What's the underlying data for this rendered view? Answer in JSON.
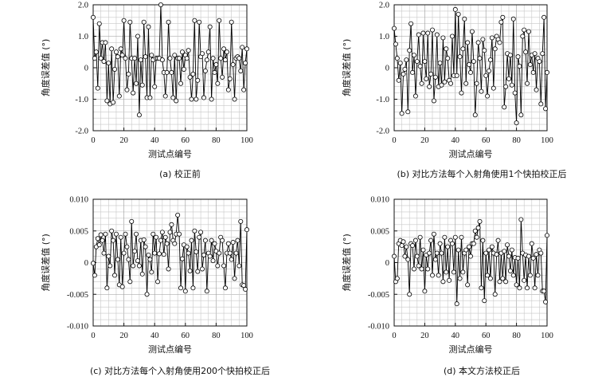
{
  "chart_data": [
    {
      "type": "line",
      "caption": "(a) 校正前",
      "xlabel": "测试点编号",
      "ylabel": "角度误差值 (°)",
      "xlim": [
        0,
        100
      ],
      "ylim": [
        -2.0,
        2.0
      ],
      "x_ticks": [
        "0",
        "20",
        "40",
        "60",
        "80",
        "100"
      ],
      "y_ticks": [
        "2.0",
        "1.0",
        "0",
        "-1.0",
        "-2.0"
      ],
      "grid": true,
      "series": [
        {
          "x": [
            0,
            1,
            2,
            3,
            4,
            5,
            6,
            7,
            8,
            9,
            10,
            11,
            12,
            13,
            14,
            15,
            16,
            17,
            18,
            19,
            20,
            21,
            22,
            23,
            24,
            25,
            26,
            27,
            28,
            29,
            30,
            31,
            32,
            33,
            34,
            35,
            36,
            37,
            38,
            39,
            40,
            41,
            42,
            43,
            44,
            45,
            46,
            47,
            48,
            49,
            50,
            51,
            52,
            53,
            54,
            55,
            56,
            57,
            58,
            59,
            60,
            61,
            62,
            63,
            64,
            65,
            66,
            67,
            68,
            69,
            70,
            71,
            72,
            73,
            74,
            75,
            76,
            77,
            78,
            79,
            80,
            81,
            82,
            83,
            84,
            85,
            86,
            87,
            88,
            89,
            90,
            91,
            92,
            93,
            94,
            95,
            96,
            97,
            98,
            99,
            100
          ],
          "values": [
            1.6,
            0.3,
            0.5,
            -0.65,
            1.4,
            0.3,
            0.8,
            0.2,
            0.8,
            -1.05,
            0.15,
            -1.15,
            0.6,
            -1.1,
            -0.05,
            0.5,
            0.35,
            -0.9,
            0.6,
            0.4,
            1.5,
            0.3,
            -0.7,
            -0.2,
            1.45,
            0.3,
            -0.8,
            0.3,
            -0.5,
            1.0,
            -1.5,
            0.25,
            -0.55,
            1.45,
            0.35,
            -0.95,
            1.3,
            -0.95,
            0.4,
            0.25,
            -0.6,
            0.3,
            0.3,
            0.3,
            2.0,
            0.25,
            -0.15,
            -0.9,
            -0.15,
            1.45,
            0.3,
            -0.15,
            -0.95,
            0.4,
            -1.05,
            0.3,
            0.3,
            -0.5,
            0.5,
            -0.05,
            0.4,
            0.3,
            0.55,
            -0.3,
            -1.0,
            -0.2,
            1.5,
            -1.0,
            -0.4,
            1.45,
            0.35,
            0.45,
            -0.95,
            -0.1,
            0.25,
            0.5,
            1.3,
            -1.0,
            0.3,
            -0.15,
            0.1,
            -0.5,
            1.5,
            0.3,
            -0.3,
            0.6,
            0.25,
            0.5,
            -0.7,
            -0.35,
            1.45,
            0.1,
            -1.0,
            0.3,
            0.35,
            0.3,
            -0.1,
            0.65,
            -0.7,
            0.15,
            0.6
          ]
        }
      ]
    },
    {
      "type": "line",
      "caption": "(b) 对比方法每个入射角使用1个快拍校正后",
      "xlabel": "测试点编号",
      "ylabel": "角度误差值 (°)",
      "xlim": [
        0,
        100
      ],
      "ylim": [
        -2.0,
        2.0
      ],
      "x_ticks": [
        "0",
        "20",
        "40",
        "60",
        "80",
        "100"
      ],
      "y_ticks": [
        "2.0",
        "1.0",
        "0",
        "-1.0",
        "-2.0"
      ],
      "grid": true,
      "series": [
        {
          "x": [
            0,
            1,
            2,
            3,
            4,
            5,
            6,
            7,
            8,
            9,
            10,
            11,
            12,
            13,
            14,
            15,
            16,
            17,
            18,
            19,
            20,
            21,
            22,
            23,
            24,
            25,
            26,
            27,
            28,
            29,
            30,
            31,
            32,
            33,
            34,
            35,
            36,
            37,
            38,
            39,
            40,
            41,
            42,
            43,
            44,
            45,
            46,
            47,
            48,
            49,
            50,
            51,
            52,
            53,
            54,
            55,
            56,
            57,
            58,
            59,
            60,
            61,
            62,
            63,
            64,
            65,
            66,
            67,
            68,
            69,
            70,
            71,
            72,
            73,
            74,
            75,
            76,
            77,
            78,
            79,
            80,
            81,
            82,
            83,
            84,
            85,
            86,
            87,
            88,
            89,
            90,
            91,
            92,
            93,
            94,
            95,
            96,
            97,
            98,
            99,
            100
          ],
          "values": [
            1.25,
            0.75,
            0.3,
            -0.4,
            0.15,
            -1.45,
            -0.2,
            -0.05,
            0.25,
            -1.4,
            0.55,
            1.4,
            -0.15,
            0.4,
            -0.9,
            0.2,
            1.05,
            0.05,
            -0.5,
            1.1,
            0.2,
            -0.35,
            1.1,
            -0.6,
            -0.2,
            1.2,
            -1.05,
            -0.3,
            1.05,
            -0.6,
            0.15,
            -0.55,
            0.95,
            -0.45,
            0.6,
            0.3,
            -0.4,
            -0.5,
            1.0,
            -0.25,
            1.85,
            -0.25,
            1.7,
            0.35,
            -0.8,
            0.6,
            1.55,
            -0.5,
            0.8,
            0.1,
            -0.15,
            1.15,
            0.2,
            -1.5,
            -0.5,
            0.8,
            0.3,
            -0.75,
            0.9,
            0.55,
            -0.25,
            -0.9,
            -0.1,
            0.25,
            0.95,
            -0.65,
            0.6,
            1.0,
            0.9,
            0.8,
            1.45,
            1.6,
            -1.25,
            -0.6,
            0.45,
            -0.35,
            0.4,
            -0.55,
            1.55,
            -0.8,
            -1.75,
            0.35,
            0.05,
            -1.5,
            1.0,
            1.2,
            0.5,
            -0.5,
            1.15,
            0.1,
            0.4,
            -0.15,
            0.45,
            -0.7,
            0.3,
            0.2,
            -1.15,
            0.45,
            1.6,
            -1.3,
            -0.15
          ]
        }
      ]
    },
    {
      "type": "line",
      "caption": "(c) 对比方法每个入射角使用200个快拍校正后",
      "xlabel": "测试点编号",
      "ylabel": "角度误差值 (°)",
      "xlim": [
        0,
        100
      ],
      "ylim": [
        -0.01,
        0.01
      ],
      "x_ticks": [
        "0",
        "20",
        "40",
        "60",
        "80",
        "100"
      ],
      "y_ticks": [
        "0.010",
        "0.005",
        "0",
        "-0.005",
        "-0.010"
      ],
      "grid": true,
      "series": [
        {
          "x": [
            0,
            1,
            2,
            3,
            4,
            5,
            6,
            7,
            8,
            9,
            10,
            11,
            12,
            13,
            14,
            15,
            16,
            17,
            18,
            19,
            20,
            21,
            22,
            23,
            24,
            25,
            26,
            27,
            28,
            29,
            30,
            31,
            32,
            33,
            34,
            35,
            36,
            37,
            38,
            39,
            40,
            41,
            42,
            43,
            44,
            45,
            46,
            47,
            48,
            49,
            50,
            51,
            52,
            53,
            54,
            55,
            56,
            57,
            58,
            59,
            60,
            61,
            62,
            63,
            64,
            65,
            66,
            67,
            68,
            69,
            70,
            71,
            72,
            73,
            74,
            75,
            76,
            77,
            78,
            79,
            80,
            81,
            82,
            83,
            84,
            85,
            86,
            87,
            88,
            89,
            90,
            91,
            92,
            93,
            94,
            95,
            96,
            97,
            98,
            99,
            100
          ],
          "values": [
            -0.0001,
            -0.002,
            0.0025,
            0.0038,
            0.0028,
            0.0044,
            0.0035,
            0.0015,
            0.0045,
            -0.004,
            0.001,
            -0.0005,
            0.005,
            0.0035,
            -0.002,
            0.0045,
            0.0005,
            -0.0035,
            0.004,
            -0.0038,
            0.0015,
            0.0045,
            0.0025,
            0.0005,
            -0.003,
            0.0065,
            -0.0005,
            0.0018,
            0.0045,
            0.0003,
            -0.0005,
            0.0035,
            -0.0018,
            0.0036,
            0.0025,
            -0.005,
            0.0012,
            0.0005,
            -0.0015,
            0.0045,
            0.0015,
            0.004,
            -0.003,
            0.0014,
            0.0035,
            0.0048,
            0.0013,
            0.004,
            0.003,
            -0.001,
            0.0048,
            0.006,
            0.0035,
            0.003,
            0.0045,
            0.0075,
            0.0045,
            -0.004,
            0.0006,
            0.0028,
            -0.0045,
            0.0025,
            0.0015,
            -0.0013,
            0.0035,
            -0.004,
            0.005,
            0.0017,
            -0.0014,
            0.004,
            0.0048,
            -0.001,
            0.0012,
            0.0035,
            -0.0045,
            0.0015,
            0.001,
            0.0035,
            0.0003,
            0.003,
            0.0018,
            -0.0005,
            0.0015,
            0.004,
            0.0035,
            -0.0005,
            -0.004,
            0.0015,
            0.003,
            0.0015,
            0.0005,
            0.0032,
            -0.0025,
            0.0015,
            0.0035,
            -0.0005,
            0.0065,
            -0.0035,
            -0.0036,
            -0.0042,
            0.0052
          ]
        }
      ]
    },
    {
      "type": "line",
      "caption": "(d) 本文方法校正后",
      "xlabel": "测试点编号",
      "ylabel": "角度误差值 (°)",
      "xlim": [
        0,
        100
      ],
      "ylim": [
        -0.01,
        0.01
      ],
      "x_ticks": [
        "0",
        "20",
        "40",
        "60",
        "80",
        "100"
      ],
      "y_ticks": [
        "0.010",
        "0.005",
        "0",
        "-0.005",
        "-0.010"
      ],
      "grid": true,
      "series": [
        {
          "x": [
            0,
            1,
            2,
            3,
            4,
            5,
            6,
            7,
            8,
            9,
            10,
            11,
            12,
            13,
            14,
            15,
            16,
            17,
            18,
            19,
            20,
            21,
            22,
            23,
            24,
            25,
            26,
            27,
            28,
            29,
            30,
            31,
            32,
            33,
            34,
            35,
            36,
            37,
            38,
            39,
            40,
            41,
            42,
            43,
            44,
            45,
            46,
            47,
            48,
            49,
            50,
            51,
            52,
            53,
            54,
            55,
            56,
            57,
            58,
            59,
            60,
            61,
            62,
            63,
            64,
            65,
            66,
            67,
            68,
            69,
            70,
            71,
            72,
            73,
            74,
            75,
            76,
            77,
            78,
            79,
            80,
            81,
            82,
            83,
            84,
            85,
            86,
            87,
            88,
            89,
            90,
            91,
            92,
            93,
            94,
            95,
            96,
            97,
            98,
            99,
            100
          ],
          "values": [
            0.001,
            -0.003,
            -0.0025,
            0.003,
            0.0035,
            0.0027,
            0.0033,
            0.001,
            0.0025,
            0.0005,
            -0.005,
            0.003,
            0.0027,
            -0.001,
            0.0035,
            0.001,
            -0.0005,
            0.004,
            -0.001,
            0.002,
            -0.0045,
            0.0012,
            -0.001,
            0.0015,
            0.0035,
            -0.002,
            0.0045,
            0.0005,
            0.0015,
            -0.002,
            0.003,
            0.0015,
            -0.003,
            0.004,
            -0.0015,
            0.0025,
            -0.0028,
            0.0035,
            0.003,
            -0.0015,
            0.004,
            -0.0065,
            0.002,
            -0.0025,
            0.004,
            -0.0015,
            0.0015,
            0.002,
            -0.0035,
            0.0025,
            0.001,
            0.003,
            0.003,
            0.005,
            0.004,
            0.0055,
            0.0065,
            -0.004,
            0.0035,
            -0.006,
            0.0015,
            -0.002,
            0.002,
            -0.0025,
            0.0025,
            0.0015,
            -0.005,
            0.0013,
            0.0035,
            -0.003,
            0.0015,
            -0.0025,
            0.0018,
            -0.003,
            0.0028,
            0.001,
            -0.0013,
            0.002,
            -0.002,
            0.0008,
            -0.0035,
            0.0007,
            -0.004,
            0.0068,
            0.0015,
            -0.0028,
            0.0012,
            -0.004,
            0.001,
            -0.002,
            0.003,
            0.0007,
            -0.004,
            0.0013,
            -0.002,
            0.002,
            0.0015,
            -0.0045,
            -0.0045,
            -0.0062,
            0.0043
          ]
        }
      ]
    }
  ]
}
